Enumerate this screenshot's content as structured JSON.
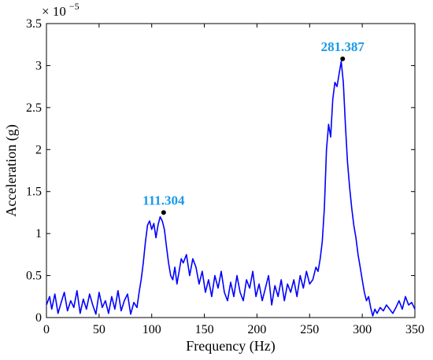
{
  "chart_data": {
    "type": "line",
    "xlabel": "Frequency (Hz)",
    "ylabel": "Acceleration (g)",
    "y_multiplier": {
      "base": "× 10",
      "exponent": "−5"
    },
    "xlim": [
      0,
      350
    ],
    "ylim": [
      0,
      3.5
    ],
    "xticks": [
      "0",
      "50",
      "100",
      "150",
      "200",
      "250",
      "300",
      "350"
    ],
    "yticks": [
      "0",
      "0.5",
      "1",
      "1.5",
      "2",
      "2.5",
      "3",
      "3.5"
    ],
    "grid": false,
    "line_color": "#0000ff",
    "peak_label_color": "#1a9be6",
    "series": [
      {
        "x": [
          0,
          3,
          5,
          8,
          11,
          14,
          17,
          20,
          23,
          26,
          29,
          32,
          35,
          38,
          41,
          44,
          47,
          50,
          53,
          56,
          59,
          62,
          65,
          68,
          71,
          74,
          77,
          80,
          83,
          86,
          88,
          90,
          92,
          94,
          96,
          98,
          100,
          102,
          104,
          106,
          108,
          110,
          112,
          114,
          116,
          118,
          120,
          122,
          124,
          126,
          128,
          130,
          133,
          136,
          139,
          142,
          145,
          148,
          151,
          154,
          157,
          160,
          163,
          166,
          169,
          172,
          175,
          178,
          181,
          184,
          187,
          190,
          193,
          196,
          199,
          202,
          205,
          208,
          211,
          214,
          217,
          220,
          223,
          226,
          229,
          232,
          235,
          238,
          241,
          244,
          247,
          250,
          253,
          256,
          258,
          260,
          262,
          264,
          266,
          268,
          270,
          272,
          274,
          276,
          278,
          280,
          282,
          284,
          286,
          288,
          290,
          292,
          294,
          296,
          298,
          300,
          302,
          304,
          306,
          308,
          310,
          312,
          314,
          317,
          320,
          323,
          326,
          329,
          332,
          335,
          338,
          341,
          344,
          347,
          350
        ],
        "y": [
          0.15,
          0.25,
          0.1,
          0.28,
          0.05,
          0.18,
          0.3,
          0.08,
          0.2,
          0.12,
          0.32,
          0.05,
          0.22,
          0.1,
          0.28,
          0.15,
          0.04,
          0.3,
          0.12,
          0.2,
          0.05,
          0.25,
          0.1,
          0.32,
          0.08,
          0.2,
          0.28,
          0.04,
          0.18,
          0.12,
          0.3,
          0.45,
          0.65,
          0.9,
          1.1,
          1.15,
          1.05,
          1.12,
          0.95,
          1.1,
          1.2,
          1.15,
          1.05,
          0.85,
          0.65,
          0.5,
          0.45,
          0.6,
          0.4,
          0.55,
          0.7,
          0.65,
          0.75,
          0.5,
          0.7,
          0.6,
          0.4,
          0.55,
          0.3,
          0.45,
          0.25,
          0.5,
          0.35,
          0.55,
          0.3,
          0.2,
          0.42,
          0.25,
          0.5,
          0.3,
          0.2,
          0.45,
          0.35,
          0.55,
          0.25,
          0.4,
          0.2,
          0.35,
          0.5,
          0.15,
          0.38,
          0.25,
          0.45,
          0.2,
          0.4,
          0.3,
          0.45,
          0.25,
          0.5,
          0.35,
          0.55,
          0.4,
          0.45,
          0.6,
          0.55,
          0.7,
          0.9,
          1.3,
          2.0,
          2.3,
          2.15,
          2.6,
          2.8,
          2.75,
          2.9,
          3.05,
          2.8,
          2.3,
          1.85,
          1.55,
          1.3,
          1.1,
          0.95,
          0.75,
          0.6,
          0.45,
          0.3,
          0.2,
          0.25,
          0.12,
          0.02,
          0.1,
          0.05,
          0.12,
          0.08,
          0.15,
          0.1,
          0.05,
          0.12,
          0.2,
          0.1,
          0.25,
          0.15,
          0.18,
          0.1
        ]
      }
    ],
    "peaks": [
      {
        "x": 111.304,
        "y": 1.25,
        "label": "111.304"
      },
      {
        "x": 281.387,
        "y": 3.08,
        "label": "281.387"
      }
    ]
  }
}
